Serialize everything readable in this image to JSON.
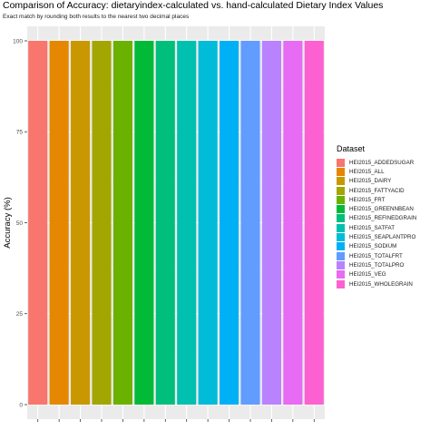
{
  "chart_data": {
    "type": "bar",
    "title": "Comparison of Accuracy: dietaryindex-calculated vs. hand-calculated Dietary Index Values",
    "subtitle": "Exact match by rounding both results to the nearest two decimal places",
    "ylabel": "Accuracy (%)",
    "xlabel": "",
    "ylim": [
      0,
      100
    ],
    "yticks": [
      0,
      25,
      50,
      75,
      100
    ],
    "grid": true,
    "legend_title": "Dataset",
    "legend_position": "right",
    "categories": [
      "HEI2015_ADDEDSUGAR",
      "HEI2015_ALL",
      "HEI2015_DAIRY",
      "HEI2015_FATTYACID",
      "HEI2015_FRT",
      "HEI2015_GREENNBEAN",
      "HEI2015_REFINEDGRAIN",
      "HEI2015_SATFAT",
      "HEI2015_SEAPLANTPRO",
      "HEI2015_SODIUM",
      "HEI2015_TOTALFRT",
      "HEI2015_TOTALPRO",
      "HEI2015_VEG",
      "HEI2015_WHOLEGRAIN"
    ],
    "values": [
      100,
      100,
      100,
      100,
      100,
      100,
      100,
      100,
      100,
      100,
      100,
      100,
      100,
      100
    ],
    "colors": [
      "#F8766D",
      "#E58700",
      "#C99800",
      "#A3A500",
      "#6BB100",
      "#00BA38",
      "#00BF7D",
      "#00C0AF",
      "#00BCD8",
      "#00B0F6",
      "#619CFF",
      "#B983FF",
      "#E76BF3",
      "#FD61D1"
    ]
  }
}
